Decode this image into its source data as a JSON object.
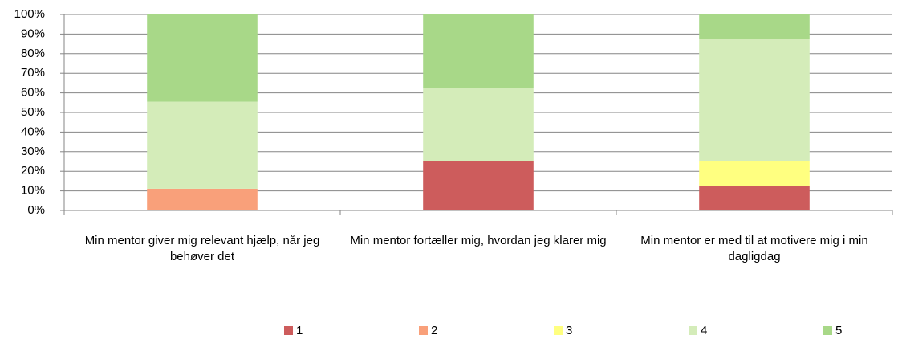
{
  "chart_data": {
    "type": "stacked_bar_100",
    "categories": [
      "Min mentor giver mig relevant hjælp, når jeg behøver det",
      "Min mentor fortæller mig, hvordan jeg klarer mig",
      "Min mentor er med til at motivere mig i min dagligdag"
    ],
    "series": [
      {
        "name": "1",
        "color": "#cd5c5c",
        "values": [
          0,
          25,
          12.5
        ]
      },
      {
        "name": "2",
        "color": "#f9a07a",
        "values": [
          11.1,
          0,
          0
        ]
      },
      {
        "name": "3",
        "color": "#ffff80",
        "values": [
          0,
          0,
          12.5
        ]
      },
      {
        "name": "4",
        "color": "#d4ecb9",
        "values": [
          44.4,
          37.5,
          62.5
        ]
      },
      {
        "name": "5",
        "color": "#a8d888",
        "values": [
          44.5,
          37.5,
          12.5
        ]
      }
    ],
    "ylim": [
      0,
      100
    ],
    "yticks": [
      {
        "value": 0,
        "label": "0%"
      },
      {
        "value": 10,
        "label": "10%"
      },
      {
        "value": 20,
        "label": "20%"
      },
      {
        "value": 30,
        "label": "30%"
      },
      {
        "value": 40,
        "label": "40%"
      },
      {
        "value": 50,
        "label": "50%"
      },
      {
        "value": 60,
        "label": "60%"
      },
      {
        "value": 70,
        "label": "70%"
      },
      {
        "value": 80,
        "label": "80%"
      },
      {
        "value": 90,
        "label": "90%"
      },
      {
        "value": 100,
        "label": "100%"
      }
    ],
    "grid": true,
    "legend": "bottom"
  }
}
